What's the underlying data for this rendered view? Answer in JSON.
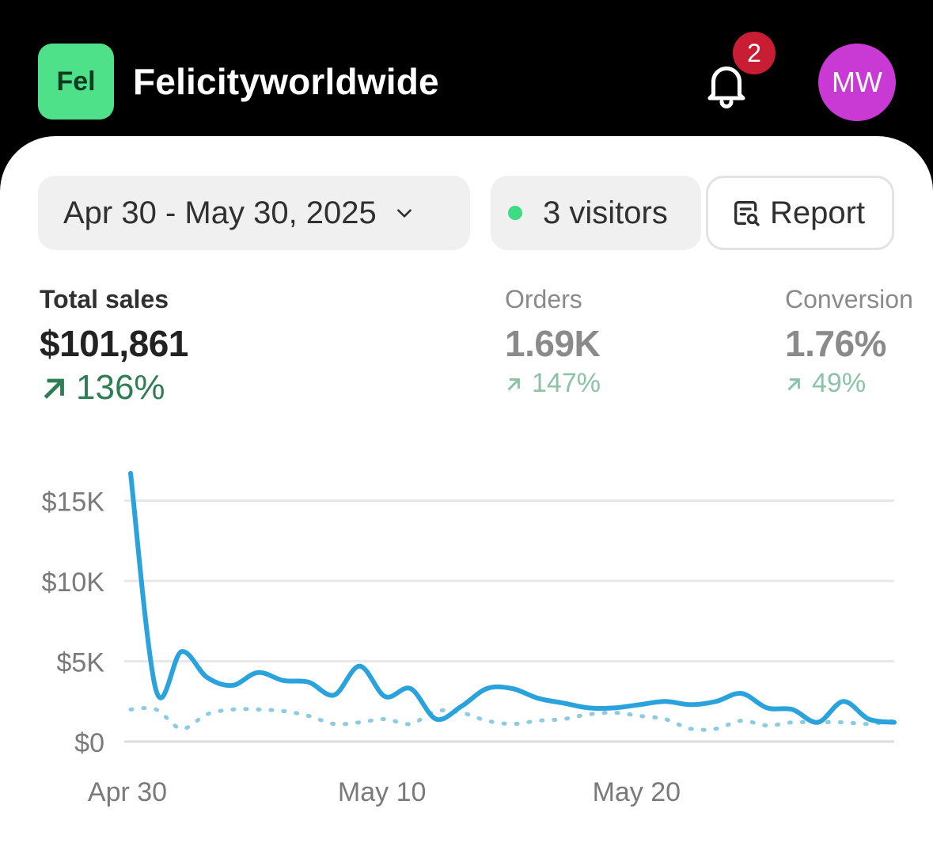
{
  "header": {
    "store_badge": "Fel",
    "store_name": "Felicityworldwide",
    "notification_count": "2",
    "avatar_initials": "MW"
  },
  "filters": {
    "date_range": "Apr 30 - May 30, 2025",
    "visitors": "3 visitors",
    "report_label": "Report"
  },
  "metrics": [
    {
      "label": "Total sales",
      "value": "$101,861",
      "change": "136%"
    },
    {
      "label": "Orders",
      "value": "1.69K",
      "change": "147%"
    },
    {
      "label": "Conversion",
      "value": "1.76%",
      "change": "49%"
    }
  ],
  "colors": {
    "brand_badge": "#4fe08a",
    "notification": "#c81d33",
    "avatar": "#c93ad4",
    "series_current": "#2aa3dd",
    "series_previous": "#8ccbe3",
    "positive": "#2f7d55"
  },
  "chart_data": {
    "type": "line",
    "y_tick_labels": [
      "$0",
      "$5K",
      "$10K",
      "$15K"
    ],
    "y_ticks": [
      0,
      5000,
      10000,
      15000
    ],
    "ylim": [
      0,
      17000
    ],
    "x_tick_labels": [
      {
        "label": "Apr 30",
        "day": 0
      },
      {
        "label": "May 10",
        "day": 10
      },
      {
        "label": "May 20",
        "day": 20
      }
    ],
    "grid": true,
    "series": [
      {
        "style": "solid",
        "values": [
          16700,
          3200,
          5600,
          4000,
          3500,
          4300,
          3800,
          3700,
          2900,
          4700,
          2800,
          3300,
          1400,
          2200,
          3300,
          3300,
          2700,
          2400,
          2100,
          2100,
          2300,
          2500,
          2300,
          2500,
          3000,
          2100,
          2000,
          1200,
          2500,
          1400,
          1200
        ]
      },
      {
        "style": "dotted",
        "values": [
          2000,
          2000,
          800,
          1700,
          2000,
          2000,
          1900,
          1600,
          1100,
          1200,
          1400,
          1100,
          1900,
          1800,
          1300,
          1100,
          1300,
          1400,
          1700,
          1800,
          1600,
          1400,
          800,
          800,
          1300,
          1000,
          1200,
          1200,
          1200,
          1100,
          1300
        ]
      }
    ]
  }
}
